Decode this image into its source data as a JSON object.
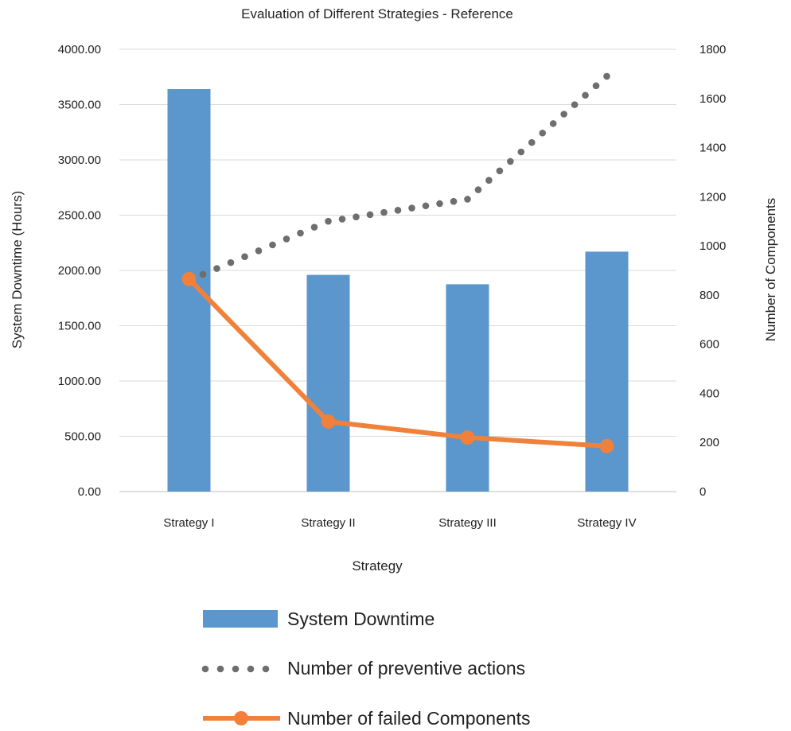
{
  "chart_data": {
    "type": "bar",
    "title": "Evaluation of Different Strategies - Reference",
    "xlabel": "Strategy",
    "ylabel_left": "System Downtime (Hours)",
    "ylabel_right": "Number of Components",
    "categories": [
      "Strategy I",
      "Strategy II",
      "Strategy III",
      "Strategy IV"
    ],
    "ylim_left": [
      0,
      4000
    ],
    "ylim_right": [
      0,
      1800
    ],
    "yticks_left": [
      "0.00",
      "500.00",
      "1000.00",
      "1500.00",
      "2000.00",
      "2500.00",
      "3000.00",
      "3500.00",
      "4000.00"
    ],
    "yticks_right": [
      "0",
      "200",
      "400",
      "600",
      "800",
      "1000",
      "1200",
      "1400",
      "1600",
      "1800"
    ],
    "grid": true,
    "legend_position": "bottom",
    "series": [
      {
        "name": "System Downtime",
        "type": "bar",
        "axis": "left",
        "color": "#5b96cc",
        "values": [
          3640,
          1960,
          1875,
          2170
        ]
      },
      {
        "name": "Number of preventive actions",
        "type": "line-dotted",
        "axis": "right",
        "color": "#6e6e6e",
        "values": [
          860,
          1100,
          1190,
          1690
        ]
      },
      {
        "name": "Number of failed Components",
        "type": "line-markers",
        "axis": "right",
        "color": "#f0813a",
        "values": [
          865,
          285,
          220,
          185
        ]
      }
    ]
  }
}
